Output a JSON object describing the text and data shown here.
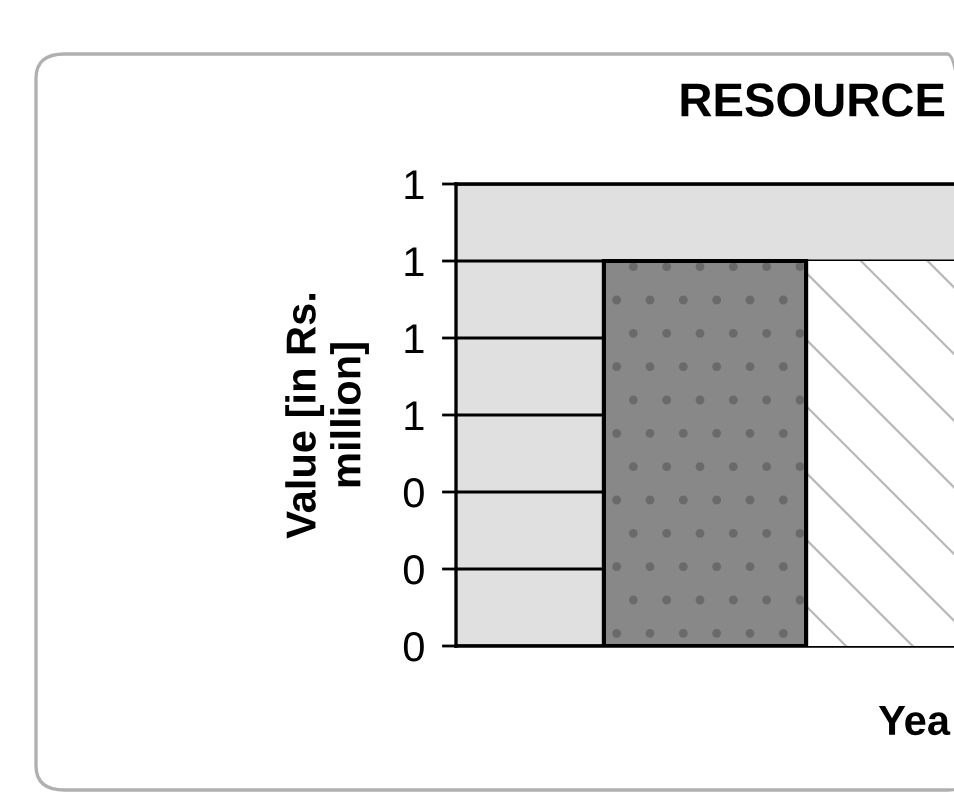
{
  "chart_data": {
    "type": "bar",
    "title": "RESOURCE",
    "xlabel": "Yea",
    "ylabel": "Value [in Rs.\nmillion]",
    "categories": [
      null
    ],
    "series": [
      {
        "color": "#888888",
        "values": [
          1.0
        ]
      },
      {
        "color": "#ffffff",
        "values": [
          1.0
        ]
      }
    ],
    "ylim": [
      0,
      1.2
    ],
    "yticks": [
      {
        "value": 0,
        "label": "0"
      },
      {
        "value": 0.2,
        "label": "0"
      },
      {
        "value": 0.4,
        "label": "0"
      },
      {
        "value": 0.6,
        "label": "1"
      },
      {
        "value": 0.8,
        "label": "1"
      },
      {
        "value": 1.0,
        "label": "1"
      },
      {
        "value": 1.2,
        "label": "1"
      }
    ],
    "grid": "y",
    "legend": false
  }
}
